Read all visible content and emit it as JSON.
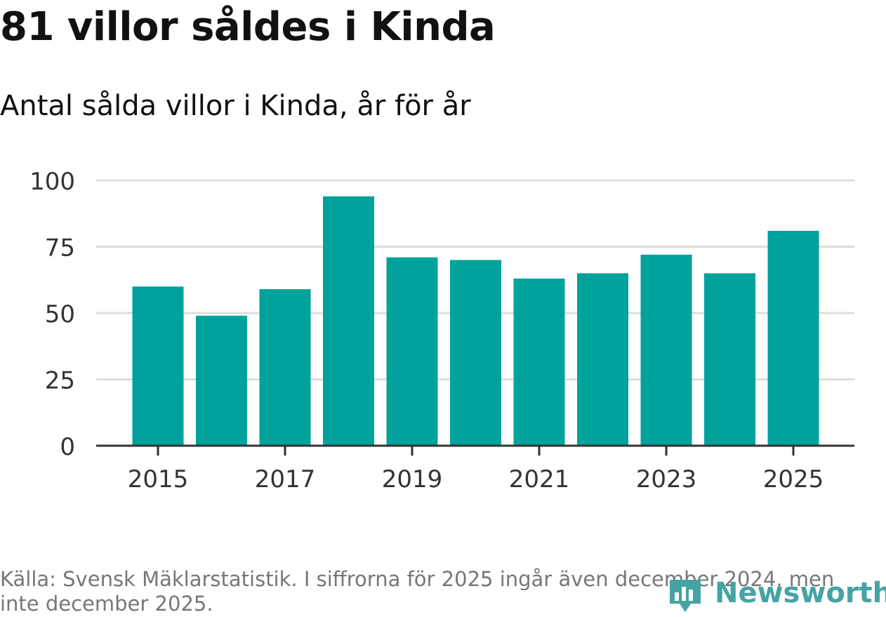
{
  "colors": {
    "bar": "#00a39b",
    "grid": "#dddddd",
    "axis": "#333333",
    "brand": "#45a3a3"
  },
  "chart_data": {
    "type": "bar",
    "title": "81 villor såldes i Kinda",
    "subtitle": "Antal sålda villor i Kinda, år för år",
    "categories": [
      "2015",
      "2016",
      "2017",
      "2018",
      "2019",
      "2020",
      "2021",
      "2022",
      "2023",
      "2024",
      "2025"
    ],
    "values": [
      60,
      49,
      59,
      94,
      71,
      70,
      63,
      65,
      72,
      65,
      81
    ],
    "xtick_labels": [
      "2015",
      "2017",
      "2019",
      "2021",
      "2023",
      "2025"
    ],
    "ytick_values": [
      0,
      25,
      50,
      75,
      100
    ],
    "ylim": [
      0,
      100
    ],
    "xlabel": "",
    "ylabel": "",
    "grid": true
  },
  "source": "Källa: Svensk Mäklarstatistik. I siffrorna för 2025 ingår även december 2024, men inte december 2025.",
  "logo": {
    "text": "Newsworthy",
    "icon": "bar-chart-pin-icon"
  }
}
